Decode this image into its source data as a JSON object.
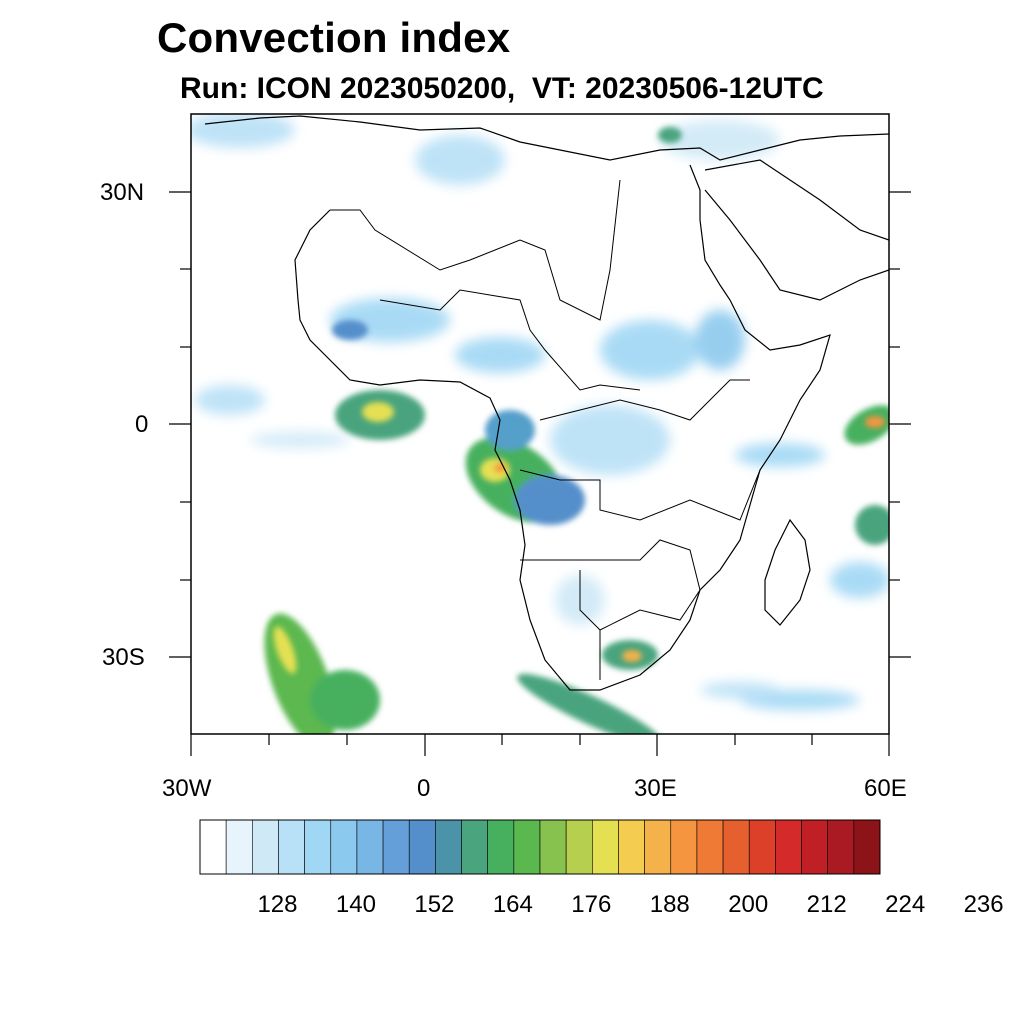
{
  "header": {
    "title": "Convection index",
    "run_label": "Run: ICON 2023050200,",
    "valid_label": "VT: 20230506-12UTC"
  },
  "axes": {
    "lon_ticks": [
      "30W",
      "0",
      "30E",
      "60E"
    ],
    "lat_ticks": [
      "30N",
      "0",
      "30S"
    ],
    "lon_range": [
      -30,
      60
    ],
    "lat_range": [
      -40,
      40
    ]
  },
  "colorbar": {
    "labels": [
      "128",
      "140",
      "152",
      "164",
      "176",
      "188",
      "200",
      "212",
      "224",
      "236"
    ],
    "colors": [
      "#ffffff",
      "#e8f4fb",
      "#cfe9f7",
      "#b8e0f6",
      "#a0d7f4",
      "#8cc9ee",
      "#78b6e6",
      "#649fd9",
      "#548fcb",
      "#4a93a8",
      "#4aa47e",
      "#47b05f",
      "#5bb84f",
      "#88c24e",
      "#b6cf4e",
      "#e5e052",
      "#f4cc50",
      "#f5b14a",
      "#f59540",
      "#ee7a35",
      "#e5602e",
      "#dd4029",
      "#d42a2a",
      "#c01f26",
      "#aa1a23",
      "#8c1419"
    ]
  },
  "map_features": {
    "region": "Africa",
    "blobs": [
      {
        "name": "gulf-of-guinea-cell",
        "lon": -4,
        "lat": 4,
        "level": "high"
      },
      {
        "name": "congo-cell",
        "lon": 10,
        "lat": -6,
        "level": "high"
      },
      {
        "name": "south-atlantic-band",
        "lon": -19,
        "lat": -31,
        "level": "medium"
      },
      {
        "name": "southern-africa-cell",
        "lon": 27,
        "lat": -29,
        "level": "high"
      },
      {
        "name": "indian-ocean-east",
        "lon": 58,
        "lat": 0,
        "level": "high"
      },
      {
        "name": "madagascar-east",
        "lon": 58,
        "lat": -14,
        "level": "medium"
      }
    ]
  }
}
